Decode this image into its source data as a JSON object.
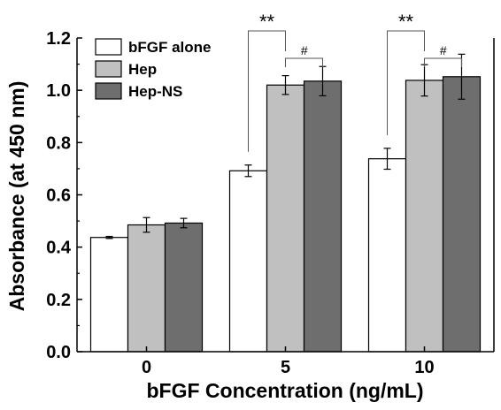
{
  "chart_data": {
    "type": "bar",
    "xlabel": "bFGF Concentration (ng/mL)",
    "ylabel": "Absorbance (at 450 nm)",
    "categories": [
      "0",
      "5",
      "10"
    ],
    "ylim": [
      0.0,
      1.2
    ],
    "yticks": [
      "0.0",
      "0.2",
      "0.4",
      "0.6",
      "0.8",
      "1.0",
      "1.2"
    ],
    "grid": false,
    "legend_position": "top-left",
    "series": [
      {
        "name": "bFGF alone",
        "color": "#ffffff",
        "values": [
          0.437,
          0.692,
          0.738
        ],
        "errors": [
          0.004,
          0.022,
          0.04
        ]
      },
      {
        "name": "Hep",
        "color": "#c0c0c0",
        "values": [
          0.485,
          1.02,
          1.038
        ],
        "errors": [
          0.028,
          0.036,
          0.06
        ]
      },
      {
        "name": "Hep-NS",
        "color": "#6e6e6e",
        "values": [
          0.492,
          1.035,
          1.052
        ],
        "errors": [
          0.018,
          0.056,
          0.086
        ]
      }
    ],
    "annotations": [
      {
        "label": "**",
        "category": "5",
        "from_series": 0,
        "to_series": 1
      },
      {
        "label": "#",
        "category": "5",
        "from_series": 1,
        "to_series": 2
      },
      {
        "label": "**",
        "category": "10",
        "from_series": 0,
        "to_series": 1
      },
      {
        "label": "#",
        "category": "10",
        "from_series": 1,
        "to_series": 2
      }
    ]
  }
}
